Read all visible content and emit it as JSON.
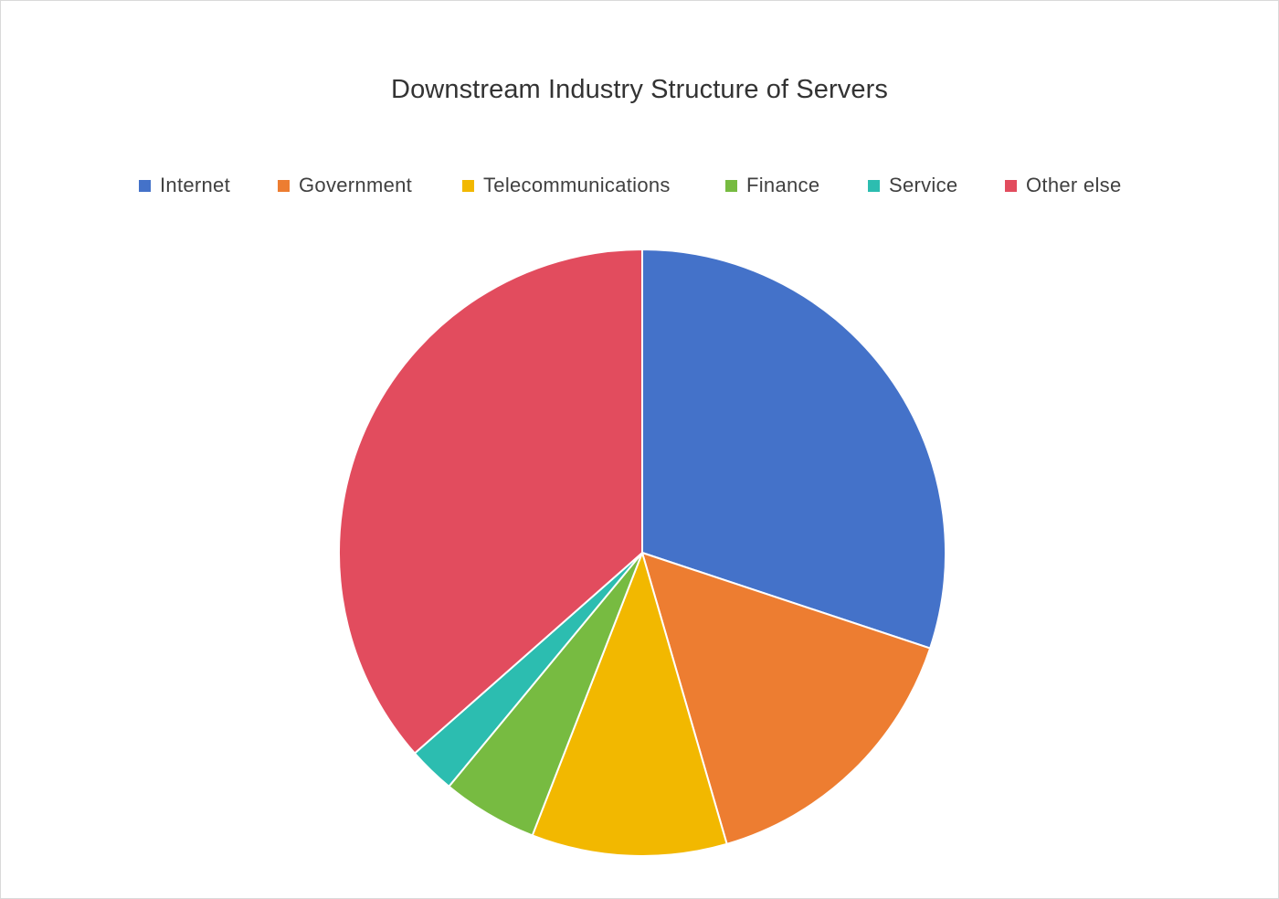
{
  "chart_data": {
    "type": "pie",
    "title": "Downstream Industry Structure of Servers",
    "legend_position": "top",
    "categories": [
      "Internet",
      "Government",
      "Telecommunications",
      "Finance",
      "Service",
      "Other else"
    ],
    "values": [
      30.1,
      15.4,
      10.4,
      5.1,
      2.5,
      36.5
    ],
    "colors": [
      "#4472C9",
      "#ED7D31",
      "#F2B800",
      "#77BB41",
      "#2CBDB0",
      "#E24C5E"
    ],
    "start_angle_deg": 0,
    "direction": "clockwise"
  }
}
